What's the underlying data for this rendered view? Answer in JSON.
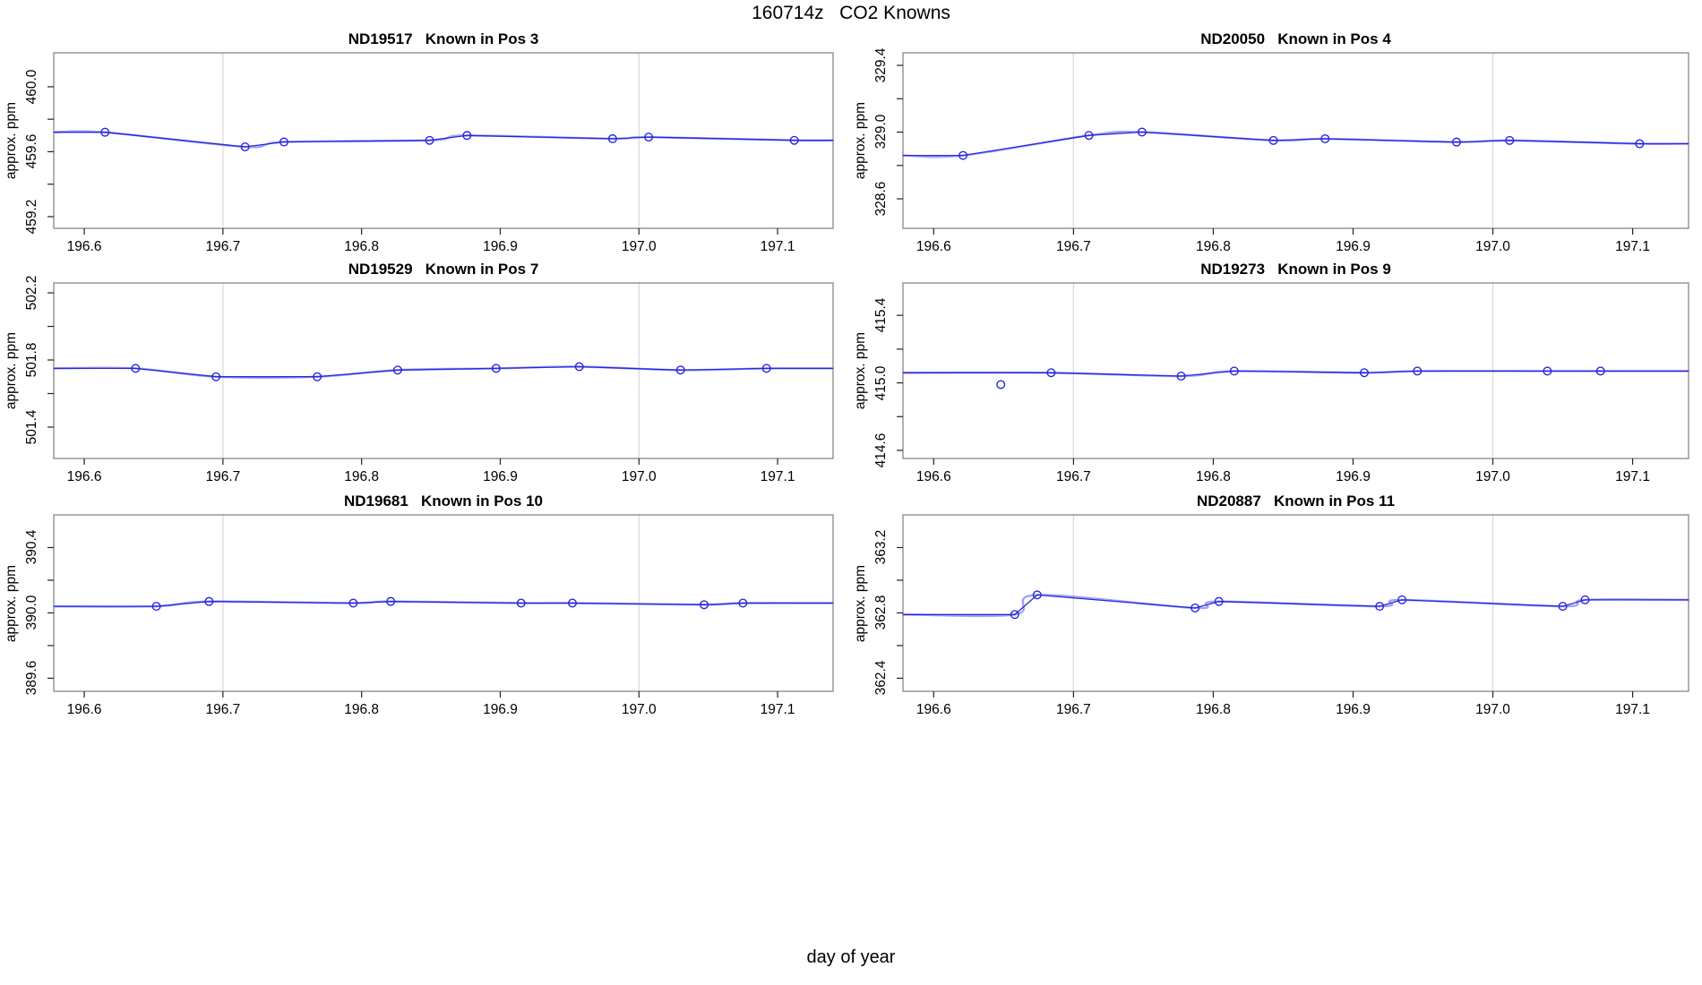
{
  "page_title": "160714z   CO2 Knowns",
  "xlabel": "day of year",
  "colors": {
    "line": "#2727de",
    "smooth_line": "#8c8cf0",
    "marker": "#2727de",
    "gridline": "#dcdcdc",
    "box_border": "#878787",
    "tick": "#222222",
    "text": "#000000",
    "background": "#ffffff"
  },
  "chart_data": [
    {
      "type": "line",
      "title": "ND19517   Known in Pos 3",
      "ylabel": "approx. ppm",
      "xlim": [
        196.578,
        197.14
      ],
      "ylim": [
        459.128,
        460.209
      ],
      "x_ticks": [
        196.6,
        196.7,
        196.8,
        196.9,
        197.0,
        197.1
      ],
      "x_tick_labels": [
        "196.6",
        "196.7",
        "196.8",
        "196.9",
        "197.0",
        "197.1"
      ],
      "y_ticks": [
        459.2,
        459.4,
        459.6,
        459.8,
        460.0
      ],
      "y_tick_labels": [
        "459.2",
        "",
        "459.6",
        "",
        "460.0"
      ],
      "gridlines_x": [
        196.7,
        197.0
      ],
      "x": [
        196.615,
        196.716,
        196.744,
        196.849,
        196.876,
        196.981,
        197.007,
        197.112
      ],
      "y": [
        459.72,
        459.63,
        459.66,
        459.67,
        459.7,
        459.68,
        459.69,
        459.67
      ],
      "outliers": []
    },
    {
      "type": "line",
      "title": "ND20050   Known in Pos 4",
      "ylabel": "approx. ppm",
      "xlim": [
        196.578,
        197.14
      ],
      "ylim": [
        328.423,
        329.475
      ],
      "x_ticks": [
        196.6,
        196.7,
        196.8,
        196.9,
        197.0,
        197.1
      ],
      "x_tick_labels": [
        "196.6",
        "196.7",
        "196.8",
        "196.9",
        "197.0",
        "197.1"
      ],
      "y_ticks": [
        328.6,
        328.8,
        329.0,
        329.2,
        329.4
      ],
      "y_tick_labels": [
        "328.6",
        "",
        "329.0",
        "",
        "329.4"
      ],
      "gridlines_x": [
        196.7,
        197.0
      ],
      "x": [
        196.621,
        196.711,
        196.749,
        196.843,
        196.88,
        196.974,
        197.012,
        197.105
      ],
      "y": [
        328.86,
        328.98,
        329.0,
        328.95,
        328.96,
        328.94,
        328.95,
        328.93
      ],
      "outliers": []
    },
    {
      "type": "line",
      "title": "ND19529   Known in Pos 7",
      "ylabel": "approx. ppm",
      "xlim": [
        196.578,
        197.14
      ],
      "ylim": [
        501.213,
        502.259
      ],
      "x_ticks": [
        196.6,
        196.7,
        196.8,
        196.9,
        197.0,
        197.1
      ],
      "x_tick_labels": [
        "196.6",
        "196.7",
        "196.8",
        "196.9",
        "197.0",
        "197.1"
      ],
      "y_ticks": [
        501.4,
        501.6,
        501.8,
        502.0,
        502.2
      ],
      "y_tick_labels": [
        "501.4",
        "",
        "501.8",
        "",
        "502.2"
      ],
      "gridlines_x": [
        196.7,
        197.0
      ],
      "x": [
        196.637,
        196.695,
        196.768,
        196.826,
        196.897,
        196.957,
        197.03,
        197.092
      ],
      "y": [
        501.75,
        501.7,
        501.7,
        501.74,
        501.75,
        501.76,
        501.74,
        501.75
      ],
      "outliers": []
    },
    {
      "type": "line",
      "title": "ND19273   Known in Pos 9",
      "ylabel": "approx. ppm",
      "xlim": [
        196.578,
        197.14
      ],
      "ylim": [
        414.552,
        415.592
      ],
      "x_ticks": [
        196.6,
        196.7,
        196.8,
        196.9,
        197.0,
        197.1
      ],
      "x_tick_labels": [
        "196.6",
        "196.7",
        "196.8",
        "196.9",
        "197.0",
        "197.1"
      ],
      "y_ticks": [
        414.6,
        414.8,
        415.0,
        415.2,
        415.4
      ],
      "y_tick_labels": [
        "414.6",
        "",
        "415.0",
        "",
        "415.4"
      ],
      "gridlines_x": [
        196.7,
        197.0
      ],
      "x": [
        196.684,
        196.777,
        196.815,
        196.908,
        196.946,
        197.039,
        197.077
      ],
      "y": [
        415.06,
        415.04,
        415.07,
        415.06,
        415.07,
        415.07,
        415.07
      ],
      "outliers": [
        {
          "x": 196.648,
          "y": 414.99
        }
      ]
    },
    {
      "type": "line",
      "title": "ND19681   Known in Pos 10",
      "ylabel": "approx. ppm",
      "xlim": [
        196.578,
        197.14
      ],
      "ylim": [
        389.52,
        390.6
      ],
      "x_ticks": [
        196.6,
        196.7,
        196.8,
        196.9,
        197.0,
        197.1
      ],
      "x_tick_labels": [
        "196.6",
        "196.7",
        "196.8",
        "196.9",
        "197.0",
        "197.1"
      ],
      "y_ticks": [
        389.6,
        389.8,
        390.0,
        390.2,
        390.4
      ],
      "y_tick_labels": [
        "389.6",
        "",
        "390.0",
        "",
        "390.4"
      ],
      "gridlines_x": [
        196.7,
        197.0
      ],
      "x": [
        196.652,
        196.69,
        196.794,
        196.821,
        196.915,
        196.952,
        197.047,
        197.075
      ],
      "y": [
        390.04,
        390.07,
        390.06,
        390.07,
        390.06,
        390.06,
        390.05,
        390.06
      ],
      "outliers": []
    },
    {
      "type": "line",
      "title": "ND20887   Known in Pos 11",
      "ylabel": "approx. ppm",
      "xlim": [
        196.578,
        197.14
      ],
      "ylim": [
        362.32,
        363.4
      ],
      "x_ticks": [
        196.6,
        196.7,
        196.8,
        196.9,
        197.0,
        197.1
      ],
      "x_tick_labels": [
        "196.6",
        "196.7",
        "196.8",
        "196.9",
        "197.0",
        "197.1"
      ],
      "y_ticks": [
        362.4,
        362.6,
        362.8,
        363.0,
        363.2
      ],
      "y_tick_labels": [
        "362.4",
        "",
        "362.8",
        "",
        "363.2"
      ],
      "gridlines_x": [
        196.7,
        197.0
      ],
      "x": [
        196.658,
        196.674,
        196.787,
        196.804,
        196.919,
        196.935,
        197.05,
        197.066
      ],
      "y": [
        362.79,
        362.91,
        362.83,
        362.87,
        362.84,
        362.88,
        362.84,
        362.88
      ],
      "outliers": []
    }
  ]
}
